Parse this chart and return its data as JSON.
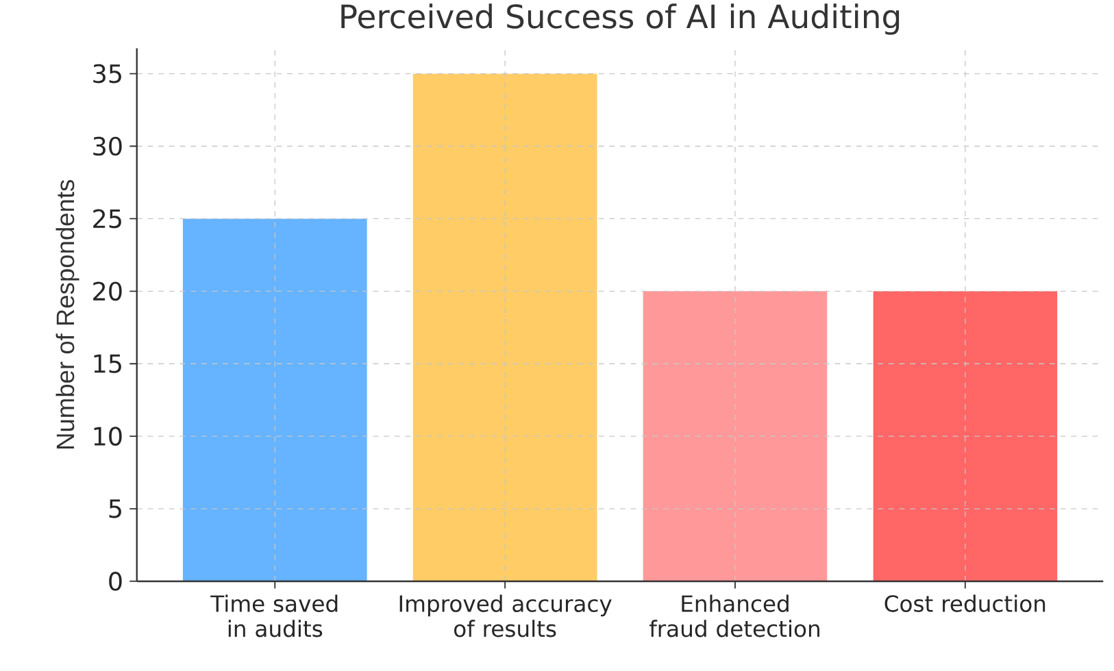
{
  "chart_data": {
    "type": "bar",
    "title": "Perceived Success of AI in Auditing",
    "ylabel": "Number of Respondents",
    "categories": [
      "Time saved in audits",
      "Improved accuracy of results",
      "Enhanced fraud detection",
      "Cost reduction"
    ],
    "values": [
      25,
      35,
      20,
      20
    ],
    "colors": [
      "#66b3ff",
      "#ffcc66",
      "#ff9999",
      "#ff6666"
    ],
    "ylim": [
      0,
      36.75
    ],
    "yticks": [
      0,
      5,
      10,
      15,
      20,
      25,
      30,
      35
    ],
    "grid": true
  }
}
